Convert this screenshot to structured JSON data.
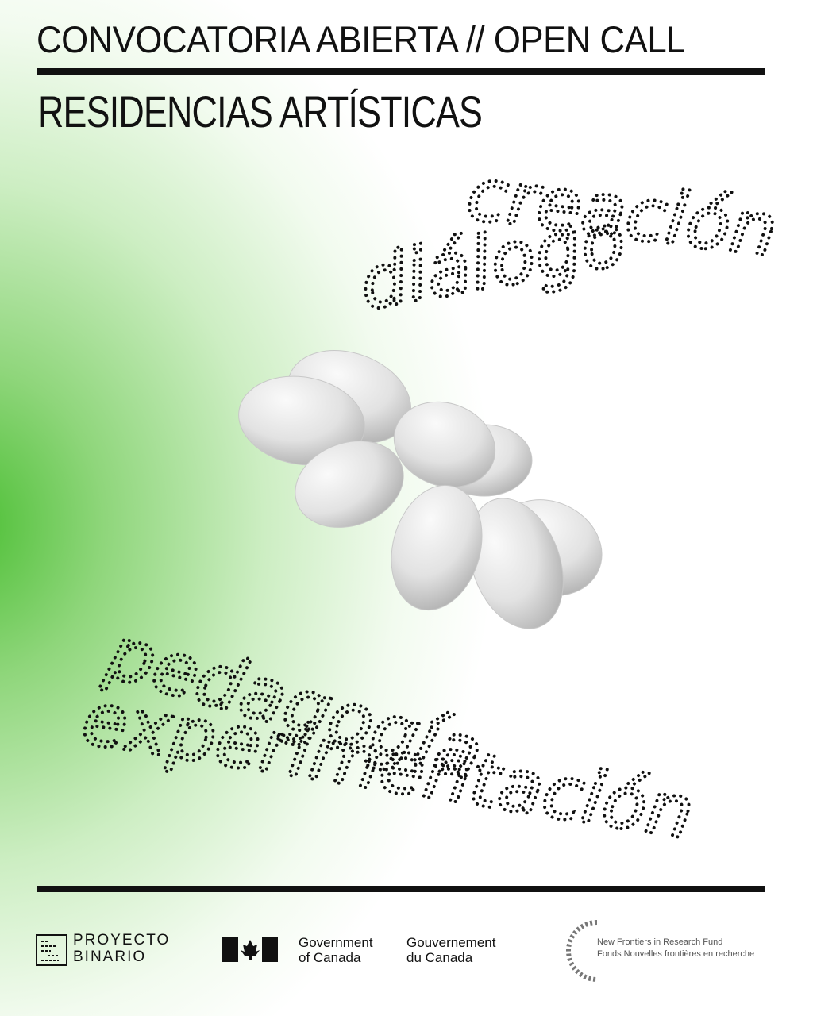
{
  "header": {
    "title": "CONVOCATORIA ABIERTA // OPEN CALL",
    "subtitle": "RESIDENCIAS ARTÍSTICAS"
  },
  "words": [
    "creación",
    "diálogo",
    "pedagogía",
    "experimentación"
  ],
  "footer": {
    "binario": [
      "PROYECTO",
      "BINARIO"
    ],
    "government_en": [
      "Government",
      "of Canada"
    ],
    "government_fr": [
      "Gouvernement",
      "du Canada"
    ],
    "nfrf_en": "New Frontiers in Research Fund",
    "nfrf_fr": "Fonds Nouvelles frontières en recherche"
  }
}
